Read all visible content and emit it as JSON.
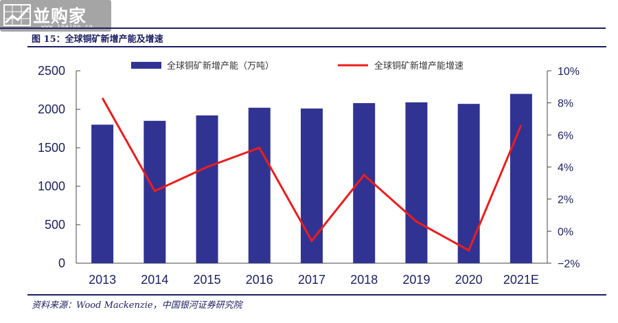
{
  "header": {
    "logo_text": "並购家",
    "logo_sub": "www.ipaipo.cn",
    "figure_title": "图 15：全球铜矿新增产能及增速"
  },
  "footer": {
    "source": "资料来源：Wood Mackenzie，中国银河证券研究院"
  },
  "colors": {
    "bar": "#313393",
    "line": "#ee1c1c",
    "accent": "#1b1e63"
  },
  "chart_data": {
    "type": "bar",
    "categories": [
      "2013",
      "2014",
      "2015",
      "2016",
      "2017",
      "2018",
      "2019",
      "2020",
      "2021E"
    ],
    "series": [
      {
        "name": "全球铜矿新增产能（万吨）",
        "type": "bar",
        "axis": "left",
        "values": [
          1800,
          1850,
          1920,
          2020,
          2010,
          2080,
          2090,
          2070,
          2200
        ]
      },
      {
        "name": "全球铜矿新增产能增速",
        "type": "line",
        "axis": "right",
        "values": [
          8.3,
          2.5,
          4.0,
          5.2,
          -0.6,
          3.5,
          0.6,
          -1.2,
          6.6
        ]
      }
    ],
    "y_left": {
      "min": 0,
      "max": 2500,
      "ticks": [
        "0",
        "500",
        "1000",
        "1500",
        "2000",
        "2500"
      ]
    },
    "y_right": {
      "min": -2,
      "max": 10,
      "ticks": [
        "−2%",
        "0%",
        "2%",
        "4%",
        "6%",
        "8%",
        "10%"
      ]
    },
    "legend_position": "top",
    "grid": false
  }
}
